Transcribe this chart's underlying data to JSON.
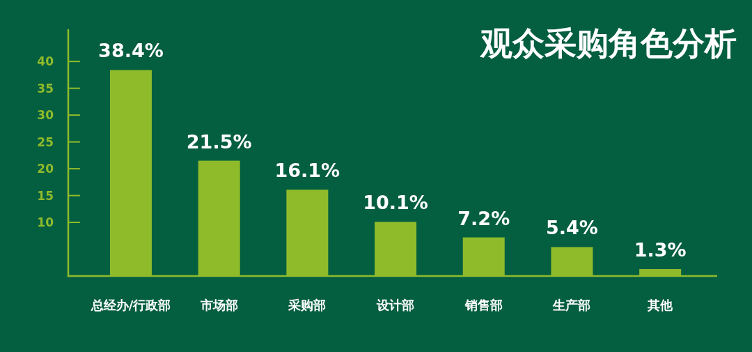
{
  "chart_data": {
    "type": "bar",
    "title": "观众采购角色分析",
    "categories": [
      "总经办/行政部",
      "市场部",
      "采购部",
      "设计部",
      "销售部",
      "生产部",
      "其他"
    ],
    "values": [
      38.4,
      21.5,
      16.1,
      10.1,
      7.2,
      5.4,
      1.3
    ],
    "value_labels": [
      "38.4%",
      "21.5%",
      "16.1%",
      "10.1%",
      "7.2%",
      "5.4%",
      "1.3%"
    ],
    "color": "#8fbb2b",
    "ylim": [
      0,
      46
    ],
    "yticks": [
      10,
      15,
      20,
      25,
      30,
      35,
      40
    ]
  }
}
